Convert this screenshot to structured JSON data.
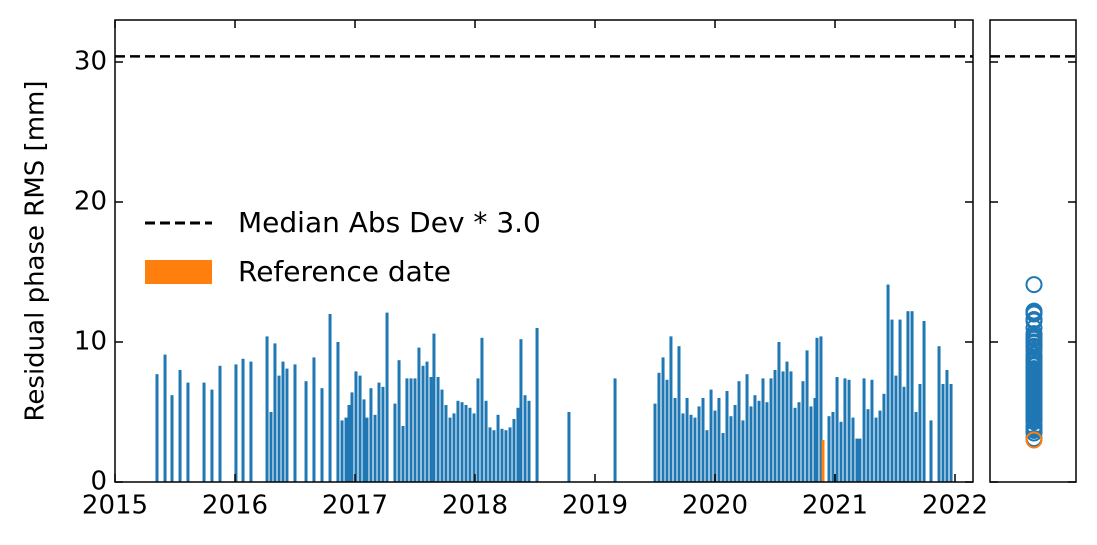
{
  "chart_data": {
    "type": "bar",
    "ylabel": "Residual phase RMS [mm]",
    "xlim": [
      2015,
      2022.15
    ],
    "xticks": [
      2015,
      2016,
      2017,
      2018,
      2019,
      2020,
      2021,
      2022
    ],
    "ylim": [
      0,
      33
    ],
    "yticks": [
      0,
      10,
      20,
      30
    ],
    "bars": {
      "color": "#1f77b4",
      "x": [
        2015.35,
        2015.417,
        2015.475,
        2015.542,
        2015.608,
        2015.742,
        2015.808,
        2015.875,
        2016.008,
        2016.067,
        2016.133,
        2016.267,
        2016.3,
        2016.333,
        2016.367,
        2016.4,
        2016.433,
        2016.5,
        2016.592,
        2016.658,
        2016.725,
        2016.792,
        2016.858,
        2016.892,
        2016.925,
        2016.95,
        2016.975,
        2017.008,
        2017.042,
        2017.075,
        2017.1,
        2017.133,
        2017.167,
        2017.2,
        2017.233,
        2017.267,
        2017.333,
        2017.367,
        2017.4,
        2017.433,
        2017.467,
        2017.5,
        2017.533,
        2017.567,
        2017.6,
        2017.633,
        2017.658,
        2017.692,
        2017.725,
        2017.758,
        2017.792,
        2017.825,
        2017.858,
        2017.892,
        2017.925,
        2017.958,
        2017.992,
        2018.025,
        2018.058,
        2018.092,
        2018.125,
        2018.158,
        2018.192,
        2018.225,
        2018.258,
        2018.292,
        2018.325,
        2018.358,
        2018.383,
        2018.417,
        2018.45,
        2018.517,
        2018.783,
        2019.167,
        2019.5,
        2019.533,
        2019.567,
        2019.6,
        2019.633,
        2019.667,
        2019.7,
        2019.733,
        2019.767,
        2019.8,
        2019.833,
        2019.867,
        2019.9,
        2019.933,
        2019.967,
        2020.0,
        2020.033,
        2020.067,
        2020.1,
        2020.133,
        2020.167,
        2020.2,
        2020.233,
        2020.267,
        2020.3,
        2020.333,
        2020.367,
        2020.4,
        2020.433,
        2020.467,
        2020.5,
        2020.533,
        2020.567,
        2020.6,
        2020.633,
        2020.667,
        2020.7,
        2020.733,
        2020.767,
        2020.8,
        2020.833,
        2020.85,
        2020.883,
        2020.95,
        2020.983,
        2021.017,
        2021.05,
        2021.083,
        2021.117,
        2021.15,
        2021.183,
        2021.208,
        2021.242,
        2021.275,
        2021.308,
        2021.342,
        2021.375,
        2021.408,
        2021.442,
        2021.475,
        2021.508,
        2021.542,
        2021.575,
        2021.608,
        2021.642,
        2021.675,
        2021.708,
        2021.742,
        2021.8,
        2021.867,
        2021.9,
        2021.933,
        2021.967
      ],
      "values": [
        7.7,
        9.1,
        6.2,
        8.0,
        7.1,
        7.1,
        6.6,
        8.3,
        8.4,
        8.8,
        8.6,
        10.4,
        5.0,
        9.9,
        7.6,
        8.6,
        8.1,
        8.4,
        7.2,
        8.9,
        6.7,
        12.0,
        10.0,
        4.4,
        4.6,
        5.5,
        6.4,
        7.9,
        7.6,
        5.9,
        4.6,
        6.7,
        4.8,
        7.1,
        6.8,
        12.1,
        5.6,
        8.7,
        4.0,
        7.4,
        7.4,
        7.4,
        9.6,
        8.3,
        8.6,
        7.5,
        10.6,
        7.5,
        6.6,
        5.5,
        4.6,
        4.9,
        5.8,
        5.7,
        5.5,
        5.3,
        4.9,
        7.4,
        10.3,
        5.8,
        3.9,
        3.7,
        4.8,
        3.8,
        3.7,
        3.9,
        4.5,
        5.3,
        10.2,
        6.2,
        5.8,
        11.0,
        5.0,
        7.4,
        5.6,
        7.8,
        8.9,
        7.3,
        10.4,
        6.0,
        9.7,
        4.9,
        6.0,
        4.8,
        4.6,
        5.4,
        6.0,
        3.7,
        6.6,
        5.1,
        6.0,
        3.5,
        6.5,
        4.7,
        5.5,
        7.2,
        4.4,
        7.7,
        5.4,
        6.2,
        5.8,
        7.4,
        5.7,
        7.4,
        8.0,
        10.0,
        7.9,
        8.6,
        7.9,
        5.3,
        5.7,
        7.2,
        9.4,
        5.4,
        6.0,
        10.3,
        10.4,
        4.7,
        5.0,
        7.5,
        4.3,
        7.4,
        7.3,
        4.6,
        3.1,
        3.1,
        7.4,
        5.2,
        7.3,
        4.6,
        5.1,
        6.3,
        14.1,
        11.6,
        7.6,
        11.6,
        6.8,
        12.2,
        12.2,
        5.0,
        7.0,
        11.5,
        4.4,
        9.7,
        7.0,
        8.0,
        7.0
      ]
    },
    "reference": {
      "name": "Reference date",
      "color": "#ff7f0e",
      "x": [
        2020.9
      ],
      "values": [
        3.0
      ]
    },
    "threshold": {
      "name": "Median Abs Dev * 3.0",
      "value": 30.4,
      "color": "#000000"
    }
  }
}
